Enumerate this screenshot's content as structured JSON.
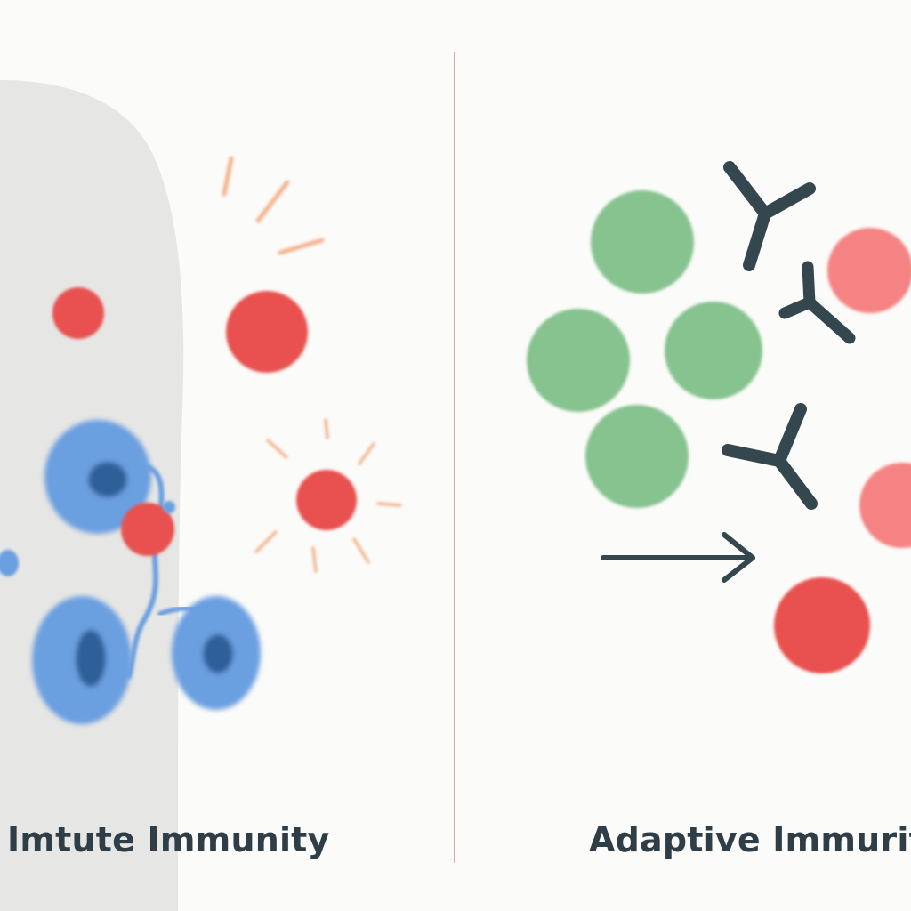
{
  "labels": {
    "left": "Imtute Immunity",
    "right": "Adaptive Immurity"
  },
  "colors": {
    "background": "#fbfbf9",
    "tissue": "#e6e6e4",
    "divider": "#d98a8a",
    "pathogen": "#e8514f",
    "pathogen_light": "#f58383",
    "signal_rays": "#f3b48e",
    "innate_cell": "#6a9fe0",
    "innate_nucleus": "#2f5f99",
    "lymphocyte": "#86c38f",
    "antibody": "#34474f",
    "arrow": "#34474f",
    "text": "#2f3e46"
  },
  "icons": {
    "antibody": "y-shape-icon",
    "pathogen": "circle-icon",
    "arrow": "arrow-right-icon"
  }
}
